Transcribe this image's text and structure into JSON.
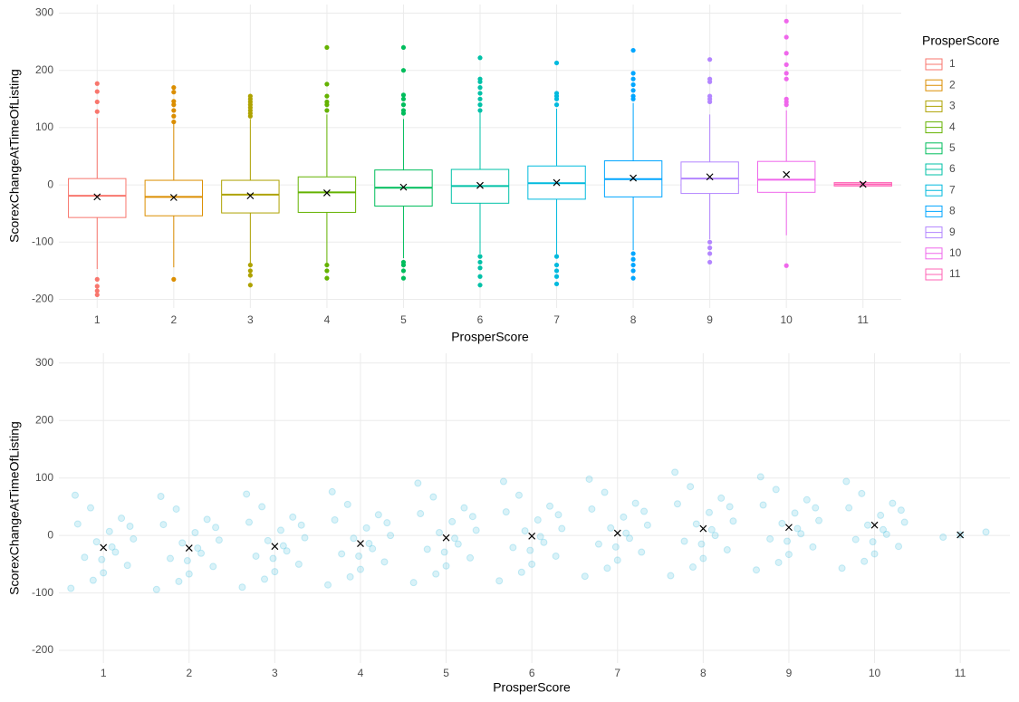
{
  "chart_data": [
    {
      "type": "boxplot",
      "x_label": "ProsperScore",
      "y_label": "ScorexChangeAtTimeOfListing",
      "legend_title": "ProsperScore",
      "categories": [
        "1",
        "2",
        "3",
        "4",
        "5",
        "6",
        "7",
        "8",
        "9",
        "10",
        "11"
      ],
      "ylim": [
        -215,
        315
      ],
      "yticks": [
        -200,
        -100,
        0,
        100,
        200,
        300
      ],
      "grid": true,
      "series": [
        {
          "name": "1",
          "color": "#F8766D",
          "lower": -147,
          "q1": -57,
          "median": -19,
          "q3": 11,
          "upper": 117,
          "mean": -21,
          "outliers": [
            177,
            163,
            145,
            128,
            -165,
            -177,
            -185,
            -192
          ]
        },
        {
          "name": "2",
          "color": "#DB8E00",
          "lower": -144,
          "q1": -54,
          "median": -21,
          "q3": 8,
          "upper": 114,
          "mean": -22,
          "outliers": [
            170,
            162,
            146,
            140,
            130,
            120,
            110,
            -165
          ]
        },
        {
          "name": "3",
          "color": "#AEA200",
          "lower": -137,
          "q1": -49,
          "median": -17,
          "q3": 8,
          "upper": 115,
          "mean": -19,
          "outliers": [
            155,
            150,
            145,
            140,
            135,
            130,
            125,
            120,
            -140,
            -150,
            -158,
            -175
          ]
        },
        {
          "name": "4",
          "color": "#64B200",
          "lower": -137,
          "q1": -48,
          "median": -13,
          "q3": 14,
          "upper": 123,
          "mean": -14,
          "outliers": [
            240,
            176,
            155,
            145,
            140,
            130,
            -140,
            -150,
            -163
          ]
        },
        {
          "name": "5",
          "color": "#00BD5C",
          "lower": -128,
          "q1": -37,
          "median": -5,
          "q3": 26,
          "upper": 115,
          "mean": -4,
          "outliers": [
            240,
            200,
            157,
            150,
            140,
            130,
            125,
            -135,
            -140,
            -150,
            -163
          ]
        },
        {
          "name": "6",
          "color": "#00C1A7",
          "lower": -120,
          "q1": -32,
          "median": -2,
          "q3": 27,
          "upper": 126,
          "mean": -1,
          "outliers": [
            222,
            185,
            180,
            170,
            160,
            150,
            140,
            130,
            -125,
            -135,
            -145,
            -160,
            -175
          ]
        },
        {
          "name": "7",
          "color": "#00BADE",
          "lower": -121,
          "q1": -25,
          "median": 3,
          "q3": 33,
          "upper": 133,
          "mean": 4,
          "outliers": [
            213,
            160,
            155,
            150,
            140,
            -125,
            -140,
            -150,
            -160,
            -173
          ]
        },
        {
          "name": "8",
          "color": "#00A6FF",
          "lower": -114,
          "q1": -21,
          "median": 10,
          "q3": 42,
          "upper": 143,
          "mean": 12,
          "outliers": [
            235,
            195,
            185,
            175,
            165,
            155,
            150,
            -120,
            -130,
            -140,
            -150,
            -163
          ]
        },
        {
          "name": "9",
          "color": "#B385FF",
          "lower": -95,
          "q1": -15,
          "median": 11,
          "q3": 40,
          "upper": 123,
          "mean": 14,
          "outliers": [
            219,
            185,
            180,
            155,
            150,
            145,
            -100,
            -110,
            -120,
            -135
          ]
        },
        {
          "name": "10",
          "color": "#EF67EB",
          "lower": -88,
          "q1": -13,
          "median": 9,
          "q3": 41,
          "upper": 130,
          "mean": 18,
          "outliers": [
            286,
            258,
            230,
            210,
            195,
            185,
            150,
            145,
            140,
            -141
          ]
        },
        {
          "name": "11",
          "color": "#FF63B6",
          "lower": -2,
          "q1": -2,
          "median": 1,
          "q3": 4,
          "upper": 4,
          "mean": 1,
          "outliers": []
        }
      ]
    },
    {
      "type": "scatter",
      "x_label": "ProsperScore",
      "y_label": "ScorexChangeAtTimeOfListing",
      "xlim": [
        0.48,
        11.58
      ],
      "xticks": [
        1,
        2,
        3,
        4,
        5,
        6,
        7,
        8,
        9,
        10,
        11
      ],
      "ylim": [
        -222,
        317
      ],
      "yticks": [
        -200,
        -100,
        0,
        100,
        200,
        300
      ],
      "grid": true,
      "color": "#2DB8DA",
      "mean_color": "#000000",
      "groups": [
        {
          "x": [
            0.62,
            0.7,
            0.78,
            0.85,
            0.92,
            1,
            1.07,
            1.14,
            1.21,
            1.28,
            1.35,
            0.67,
            0.88,
            1.1,
            1.31,
            0.98
          ],
          "y": [
            -92,
            20,
            -38,
            48,
            -11,
            -65,
            7,
            -29,
            30,
            -52,
            -6,
            70,
            -78,
            -20,
            16,
            -42
          ]
        },
        {
          "x": [
            1.62,
            1.7,
            1.78,
            1.85,
            1.92,
            2,
            2.07,
            2.14,
            2.21,
            2.28,
            2.35,
            1.67,
            1.88,
            2.1,
            2.31,
            1.98
          ],
          "y": [
            -94,
            19,
            -40,
            46,
            -13,
            -67,
            5,
            -31,
            28,
            -54,
            -8,
            68,
            -80,
            -22,
            14,
            -44
          ]
        },
        {
          "x": [
            2.62,
            2.7,
            2.78,
            2.85,
            2.92,
            3,
            3.07,
            3.14,
            3.21,
            3.28,
            3.35,
            2.67,
            2.88,
            3.1,
            3.31,
            2.98
          ],
          "y": [
            -90,
            23,
            -36,
            50,
            -9,
            -63,
            9,
            -27,
            32,
            -50,
            -4,
            72,
            -76,
            -18,
            18,
            -40
          ]
        },
        {
          "x": [
            3.62,
            3.7,
            3.78,
            3.85,
            3.92,
            4,
            4.07,
            4.14,
            4.21,
            4.28,
            4.35,
            3.67,
            3.88,
            4.1,
            4.31,
            3.98
          ],
          "y": [
            -86,
            27,
            -32,
            54,
            -5,
            -59,
            13,
            -23,
            36,
            -46,
            0,
            76,
            -72,
            -14,
            22,
            -36
          ]
        },
        {
          "x": [
            4.62,
            4.7,
            4.78,
            4.85,
            4.92,
            5,
            5.07,
            5.14,
            5.21,
            5.28,
            5.35,
            4.67,
            4.88,
            5.1,
            5.31,
            4.98
          ],
          "y": [
            -82,
            38,
            -24,
            67,
            5,
            -53,
            24,
            -15,
            48,
            -39,
            9,
            91,
            -67,
            -5,
            33,
            -29
          ]
        },
        {
          "x": [
            5.62,
            5.7,
            5.78,
            5.85,
            5.92,
            6,
            6.07,
            6.14,
            6.21,
            6.28,
            6.35,
            5.67,
            5.88,
            6.1,
            6.31,
            5.98
          ],
          "y": [
            -79,
            41,
            -21,
            70,
            8,
            -50,
            27,
            -12,
            51,
            -36,
            12,
            94,
            -64,
            -2,
            36,
            -26
          ]
        },
        {
          "x": [
            6.62,
            6.7,
            6.78,
            6.85,
            6.92,
            7,
            7.07,
            7.14,
            7.21,
            7.28,
            7.35,
            6.67,
            6.88,
            7.1,
            7.31,
            6.98
          ],
          "y": [
            -71,
            46,
            -15,
            75,
            13,
            -43,
            32,
            -5,
            56,
            -29,
            18,
            98,
            -57,
            4,
            42,
            -20
          ]
        },
        {
          "x": [
            7.62,
            7.7,
            7.78,
            7.85,
            7.92,
            8,
            8.07,
            8.14,
            8.21,
            8.28,
            8.35,
            7.67,
            7.88,
            8.1,
            8.31,
            7.98
          ],
          "y": [
            -70,
            55,
            -10,
            85,
            20,
            -40,
            40,
            0,
            65,
            -25,
            25,
            110,
            -55,
            10,
            50,
            -15
          ]
        },
        {
          "x": [
            8.62,
            8.7,
            8.78,
            8.85,
            8.92,
            9,
            9.07,
            9.14,
            9.21,
            9.28,
            9.35,
            8.67,
            8.88,
            9.1,
            9.31,
            8.98
          ],
          "y": [
            -60,
            53,
            -6,
            80,
            21,
            -33,
            39,
            3,
            62,
            -20,
            26,
            102,
            -47,
            12,
            48,
            -10
          ]
        },
        {
          "x": [
            9.62,
            9.7,
            9.78,
            9.85,
            9.92,
            10,
            10.07,
            10.14,
            10.21,
            10.28,
            10.35,
            9.67,
            9.88,
            10.1,
            10.31,
            9.98
          ],
          "y": [
            -57,
            48,
            -7,
            73,
            18,
            -32,
            35,
            2,
            56,
            -19,
            23,
            94,
            -45,
            10,
            44,
            -11
          ]
        },
        {
          "x": [
            10.8,
            11.0,
            11.3
          ],
          "y": [
            -3,
            1,
            6
          ]
        }
      ],
      "means": {
        "x": [
          1,
          2,
          3,
          4,
          5,
          6,
          7,
          8,
          9,
          10,
          11
        ],
        "y": [
          -21,
          -22,
          -19,
          -14,
          -4,
          -1,
          4,
          12,
          14,
          18,
          1
        ]
      }
    }
  ]
}
